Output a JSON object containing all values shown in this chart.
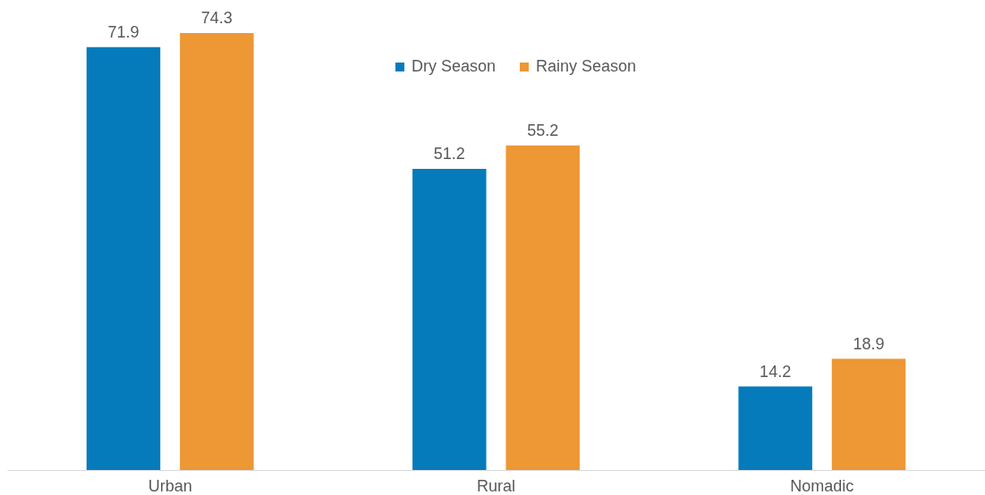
{
  "chart_data": {
    "type": "bar",
    "categories": [
      "Urban",
      "Rural",
      "Nomadic"
    ],
    "series": [
      {
        "name": "Dry Season",
        "color": "#067bbb",
        "values": [
          71.9,
          51.2,
          14.2
        ]
      },
      {
        "name": "Rainy Season",
        "color": "#ed9735",
        "values": [
          74.3,
          55.2,
          18.9
        ]
      }
    ],
    "data_labels": true,
    "legend": "top",
    "tick_labels": "x"
  }
}
